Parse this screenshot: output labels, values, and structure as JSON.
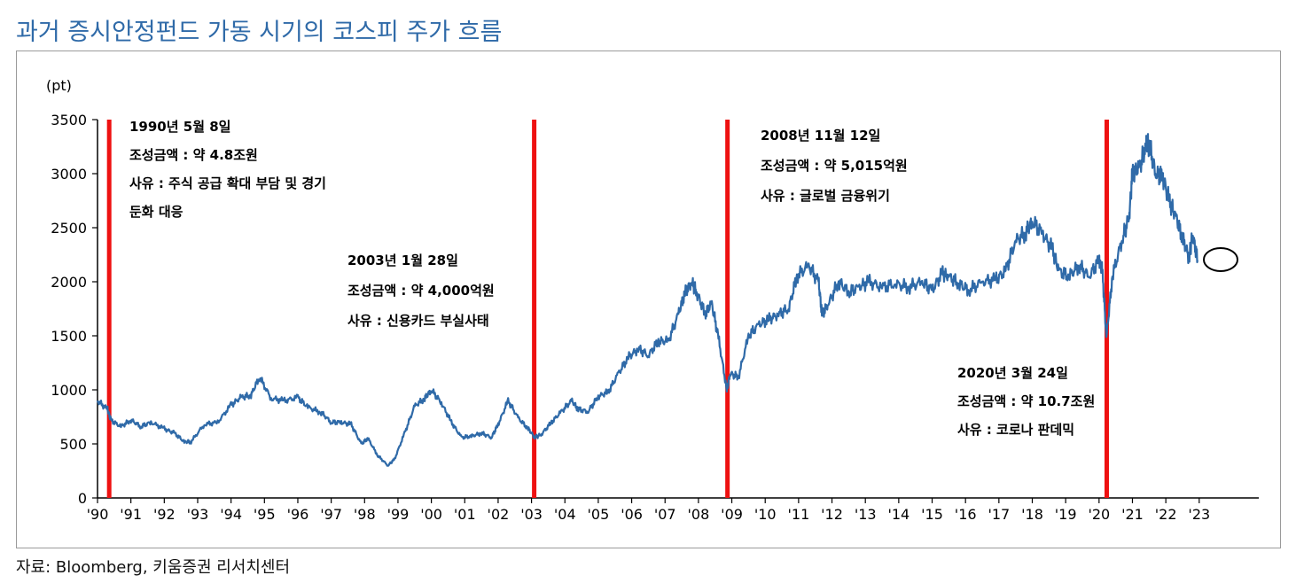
{
  "title": "과거 증시안정펀드 가동 시기의 코스피 주가 흐름",
  "source": "자료: Bloomberg, 키움증권 리서치센터",
  "colors": {
    "title": "#2f6aa8",
    "line": "#2f6aa8",
    "marker": "#ee1111",
    "axis": "#000000"
  },
  "chart_data": {
    "type": "line",
    "unit_label": "(pt)",
    "ylim": [
      0,
      3500
    ],
    "yticks": [
      0,
      500,
      1000,
      1500,
      2000,
      2500,
      3000,
      3500
    ],
    "ytick_labels": [
      "0",
      "500",
      "1000",
      "1500",
      "2000",
      "2500",
      "3000",
      "3500"
    ],
    "xlim": [
      1990,
      2024.2
    ],
    "xticks": [
      1990,
      1991,
      1992,
      1993,
      1994,
      1995,
      1996,
      1997,
      1998,
      1999,
      2000,
      2001,
      2002,
      2003,
      2004,
      2005,
      2006,
      2007,
      2008,
      2009,
      2010,
      2011,
      2012,
      2013,
      2014,
      2015,
      2016,
      2017,
      2018,
      2019,
      2020,
      2021,
      2022,
      2023
    ],
    "xtick_labels": [
      "'90",
      "'91",
      "'92",
      "'93",
      "'94",
      "'95",
      "'96",
      "'97",
      "'98",
      "'99",
      "'00",
      "'01",
      "'02",
      "'03",
      "'04",
      "'05",
      "'06",
      "'07",
      "'08",
      "'09",
      "'10",
      "'11",
      "'12",
      "'13",
      "'14",
      "'15",
      "'16",
      "'17",
      "'18",
      "'19",
      "'20",
      "'21",
      "'22",
      "'23"
    ],
    "grid": false,
    "series": [
      {
        "x": [
          1990.0,
          1990.3,
          1990.4,
          1990.7,
          1991.0,
          1991.3,
          1991.6,
          1992.0,
          1992.3,
          1992.6,
          1992.8,
          1993.2,
          1993.6,
          1994.0,
          1994.3,
          1994.6,
          1994.85,
          1995.2,
          1995.6,
          1996.0,
          1996.3,
          1996.7,
          1997.0,
          1997.3,
          1997.6,
          1997.9,
          1998.1,
          1998.4,
          1998.7,
          1998.9,
          1999.2,
          1999.5,
          1999.8,
          2000.0,
          2000.3,
          2000.6,
          2000.9,
          2001.2,
          2001.5,
          2001.8,
          2002.0,
          2002.3,
          2002.6,
          2002.9,
          2003.1,
          2003.3,
          2003.6,
          2003.9,
          2004.2,
          2004.4,
          2004.7,
          2005.0,
          2005.3,
          2005.6,
          2005.9,
          2006.2,
          2006.5,
          2006.8,
          2007.1,
          2007.4,
          2007.6,
          2007.8,
          2007.95,
          2008.2,
          2008.4,
          2008.6,
          2008.85,
          2008.95,
          2009.2,
          2009.5,
          2009.8,
          2010.1,
          2010.4,
          2010.7,
          2010.95,
          2011.3,
          2011.6,
          2011.7,
          2011.9,
          2012.2,
          2012.5,
          2012.8,
          2013.1,
          2013.5,
          2013.9,
          2014.3,
          2014.7,
          2015.0,
          2015.3,
          2015.5,
          2015.8,
          2016.1,
          2016.5,
          2016.9,
          2017.2,
          2017.5,
          2017.8,
          2018.0,
          2018.3,
          2018.6,
          2018.8,
          2019.1,
          2019.4,
          2019.7,
          2020.0,
          2020.1,
          2020.22,
          2020.4,
          2020.7,
          2020.9,
          2021.0,
          2021.2,
          2021.4,
          2021.5,
          2021.7,
          2021.9,
          2022.1,
          2022.3,
          2022.5,
          2022.7,
          2022.8,
          2022.95
        ],
        "y": [
          900,
          820,
          720,
          660,
          720,
          660,
          700,
          640,
          600,
          520,
          520,
          680,
          700,
          860,
          930,
          950,
          1120,
          920,
          900,
          930,
          840,
          790,
          700,
          700,
          680,
          500,
          550,
          390,
          300,
          360,
          600,
          850,
          920,
          1000,
          880,
          700,
          560,
          570,
          600,
          560,
          680,
          900,
          740,
          640,
          560,
          590,
          700,
          800,
          900,
          820,
          800,
          940,
          980,
          1150,
          1300,
          1380,
          1320,
          1450,
          1450,
          1700,
          1900,
          2000,
          1900,
          1700,
          1800,
          1480,
          1000,
          1150,
          1120,
          1500,
          1600,
          1650,
          1700,
          1750,
          2050,
          2150,
          2000,
          1700,
          1800,
          2000,
          1900,
          1950,
          2000,
          1950,
          1980,
          1950,
          2000,
          1920,
          2080,
          2050,
          1980,
          1920,
          2000,
          2020,
          2100,
          2380,
          2450,
          2560,
          2450,
          2300,
          2100,
          2050,
          2150,
          2050,
          2200,
          2100,
          1480,
          2050,
          2400,
          2600,
          3000,
          3050,
          3250,
          3280,
          3000,
          2980,
          2750,
          2600,
          2400,
          2220,
          2450,
          2200
        ]
      }
    ],
    "events": [
      {
        "x": 1990.35,
        "lines": [
          "1990년 5월 8일",
          "조성금액 : 약 4.8조원",
          "사유 : 주식 공급 확대 부담 및 경기",
          "둔화 대응"
        ]
      },
      {
        "x": 2003.08,
        "lines": [
          "2003년 1월 28일",
          "조성금액 : 약 4,000억원",
          "사유 : 신용카드 부실사태"
        ]
      },
      {
        "x": 2008.87,
        "lines": [
          "2008년 11월 12일",
          "조성금액 : 약 5,015억원",
          "사유 : 글로벌 금융위기"
        ]
      },
      {
        "x": 2020.23,
        "lines": [
          "2020년 3월 24일",
          "조성금액 : 약 10.7조원",
          "사유 : 코로나 판데믹"
        ]
      }
    ]
  }
}
